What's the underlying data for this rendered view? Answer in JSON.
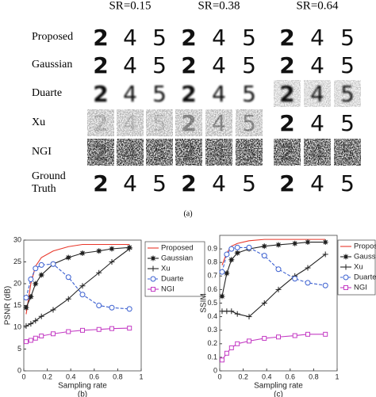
{
  "figure_a": {
    "columns": [
      "SR=0.15",
      "SR=0.38",
      "SR=0.64"
    ],
    "rows": [
      "Proposed",
      "Gaussian",
      "Duarte",
      "Xu",
      "NGI",
      "Ground Truth"
    ],
    "digits": [
      "2",
      "4",
      "5"
    ],
    "caption": "(a)"
  },
  "chart_data": [
    {
      "type": "line",
      "xlabel": "Sampling rate",
      "ylabel": "PSNR (dB)",
      "caption": "(b)",
      "xlim": [
        0,
        1
      ],
      "ylim": [
        0,
        30
      ],
      "xticks": [
        0,
        0.2,
        0.4,
        0.6,
        0.8,
        1
      ],
      "yticks": [
        0,
        5,
        10,
        15,
        20,
        25,
        30
      ],
      "legend": "outside-top-right",
      "x": [
        0.02,
        0.06,
        0.1,
        0.15,
        0.25,
        0.38,
        0.5,
        0.64,
        0.75,
        0.9
      ],
      "series": [
        {
          "name": "Proposed",
          "color": "#e8372a",
          "marker": "none",
          "linestyle": "solid",
          "values": [
            13,
            20,
            24,
            26,
            27.5,
            28.5,
            29,
            29,
            29,
            29
          ]
        },
        {
          "name": "Gaussian",
          "color": "#222222",
          "marker": "star",
          "linestyle": "solid",
          "values": [
            14.5,
            17,
            20,
            22,
            24.5,
            26,
            27,
            27.5,
            28,
            28.3
          ]
        },
        {
          "name": "Xu",
          "color": "#222222",
          "marker": "plus",
          "linestyle": "solid",
          "values": [
            10.3,
            10.8,
            11.5,
            12.5,
            14,
            16.5,
            19.5,
            22.5,
            25,
            28
          ]
        },
        {
          "name": "Duarte",
          "color": "#3a5fd0",
          "marker": "circle",
          "linestyle": "dashed",
          "values": [
            16.8,
            21,
            23.5,
            24.3,
            24.5,
            21.5,
            17.5,
            15,
            14.5,
            14.2
          ]
        },
        {
          "name": "NGI",
          "color": "#c43cc4",
          "marker": "square",
          "linestyle": "solid",
          "values": [
            6.7,
            7,
            7.5,
            8,
            8.5,
            9,
            9.3,
            9.5,
            9.7,
            9.8
          ]
        }
      ]
    },
    {
      "type": "line",
      "xlabel": "Sampling rate",
      "ylabel": "SSIM",
      "caption": "(c)",
      "xlim": [
        0,
        1
      ],
      "ylim": [
        0,
        1
      ],
      "xticks": [
        0,
        0.2,
        0.4,
        0.6,
        0.8,
        1
      ],
      "yticks": [
        0,
        0.1,
        0.2,
        0.3,
        0.4,
        0.5,
        0.6,
        0.7,
        0.8,
        0.9
      ],
      "legend": "outside-top-right",
      "x": [
        0.02,
        0.06,
        0.1,
        0.15,
        0.25,
        0.38,
        0.5,
        0.64,
        0.75,
        0.9
      ],
      "series": [
        {
          "name": "Proposed",
          "color": "#e8372a",
          "marker": "none",
          "linestyle": "solid",
          "values": [
            0.78,
            0.87,
            0.92,
            0.94,
            0.96,
            0.97,
            0.97,
            0.97,
            0.97,
            0.97
          ]
        },
        {
          "name": "Gaussian",
          "color": "#222222",
          "marker": "star",
          "linestyle": "solid",
          "values": [
            0.55,
            0.72,
            0.82,
            0.87,
            0.9,
            0.92,
            0.93,
            0.94,
            0.95,
            0.95
          ]
        },
        {
          "name": "Xu",
          "color": "#222222",
          "marker": "plus",
          "linestyle": "solid",
          "values": [
            0.44,
            0.44,
            0.44,
            0.42,
            0.4,
            0.5,
            0.6,
            0.7,
            0.76,
            0.86
          ]
        },
        {
          "name": "Duarte",
          "color": "#3a5fd0",
          "marker": "circle",
          "linestyle": "dashed",
          "values": [
            0.73,
            0.86,
            0.9,
            0.91,
            0.91,
            0.85,
            0.75,
            0.68,
            0.65,
            0.63
          ]
        },
        {
          "name": "NGI",
          "color": "#c43cc4",
          "marker": "square",
          "linestyle": "solid",
          "values": [
            0.08,
            0.13,
            0.17,
            0.2,
            0.22,
            0.24,
            0.25,
            0.26,
            0.27,
            0.27
          ]
        }
      ]
    }
  ]
}
